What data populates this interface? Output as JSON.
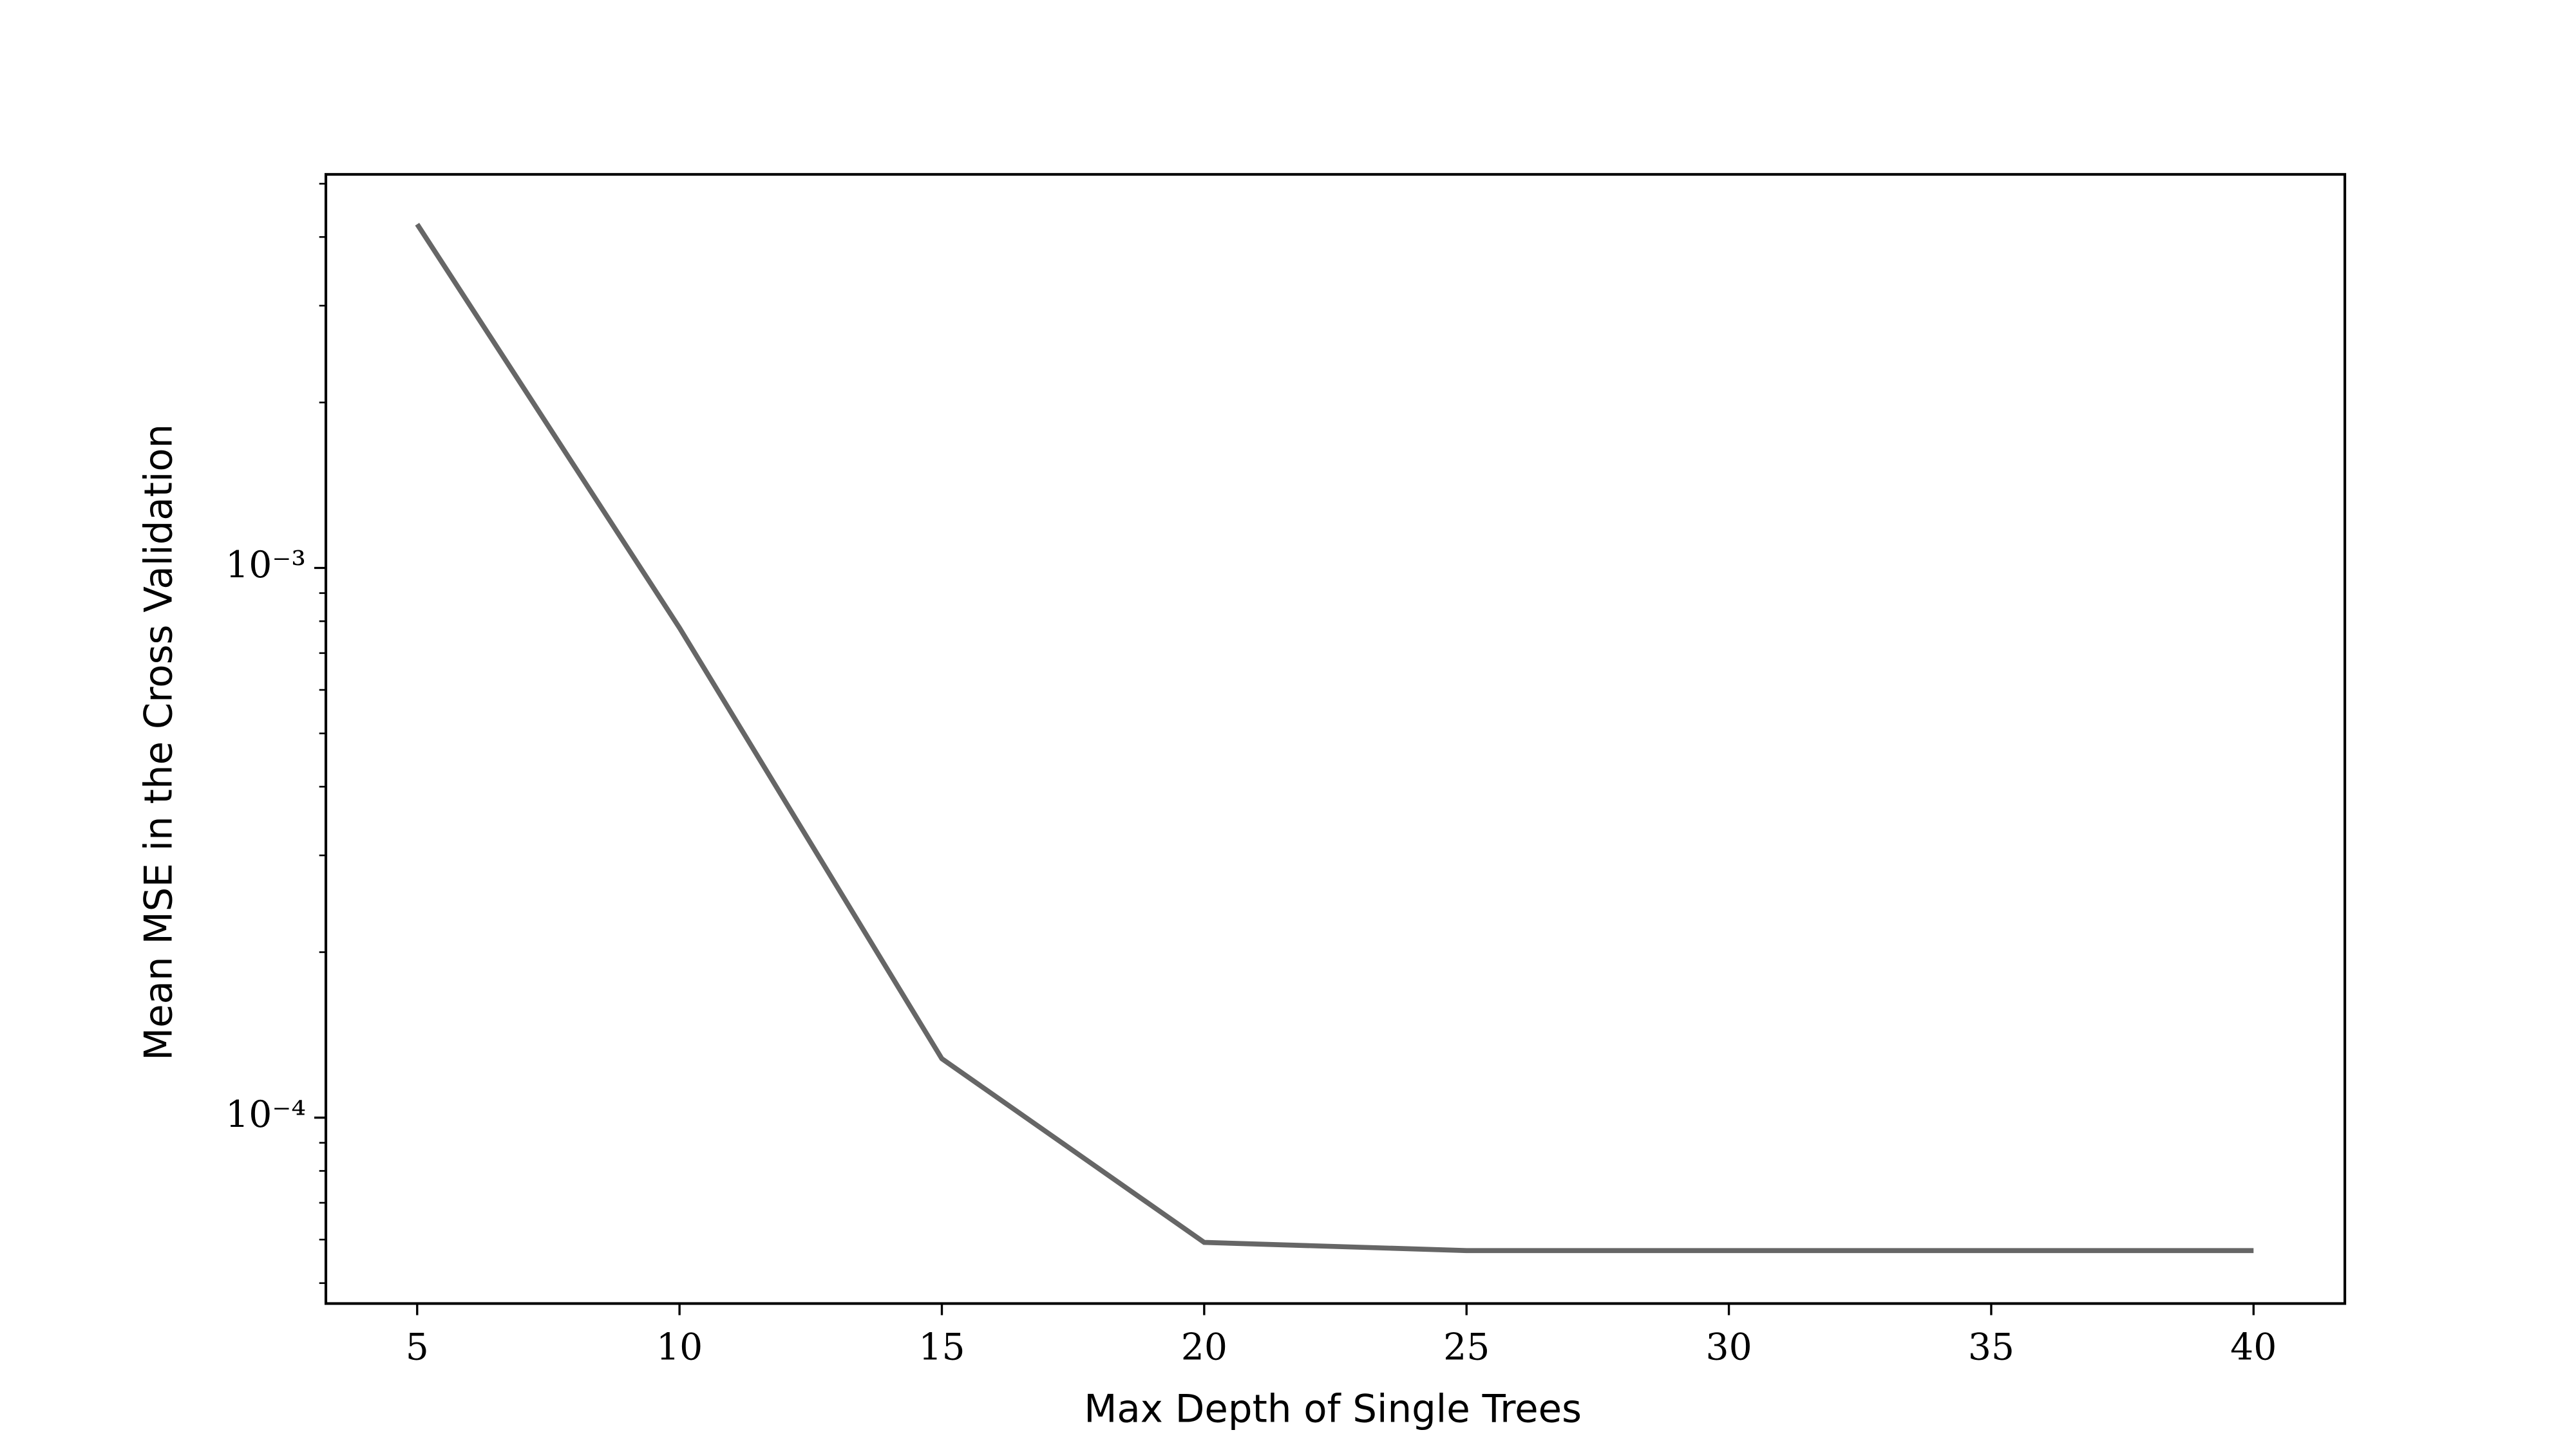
{
  "chart_data": {
    "type": "line",
    "xlabel": "Max Depth of Single Trees",
    "ylabel": "Mean MSE in the Cross Validation",
    "x": [
      5,
      10,
      15,
      20,
      25,
      30,
      35,
      40
    ],
    "series": [
      {
        "color": "#666666",
        "values": [
          0.00422,
          0.000778,
          0.000128,
          5.93e-05,
          5.73e-05,
          5.73e-05,
          5.73e-05,
          5.73e-05
        ]
      }
    ],
    "xlim": [
      3.26,
      41.74
    ],
    "xticks": [
      5,
      10,
      15,
      20,
      25,
      30,
      35,
      40
    ],
    "ylim": [
      4.59e-05,
      0.0052
    ],
    "yscale": "log",
    "yticks": [
      {
        "value": 0.001,
        "label": "10⁻³"
      },
      {
        "value": 0.0001,
        "label": "10⁻⁴"
      }
    ],
    "grid": false
  }
}
